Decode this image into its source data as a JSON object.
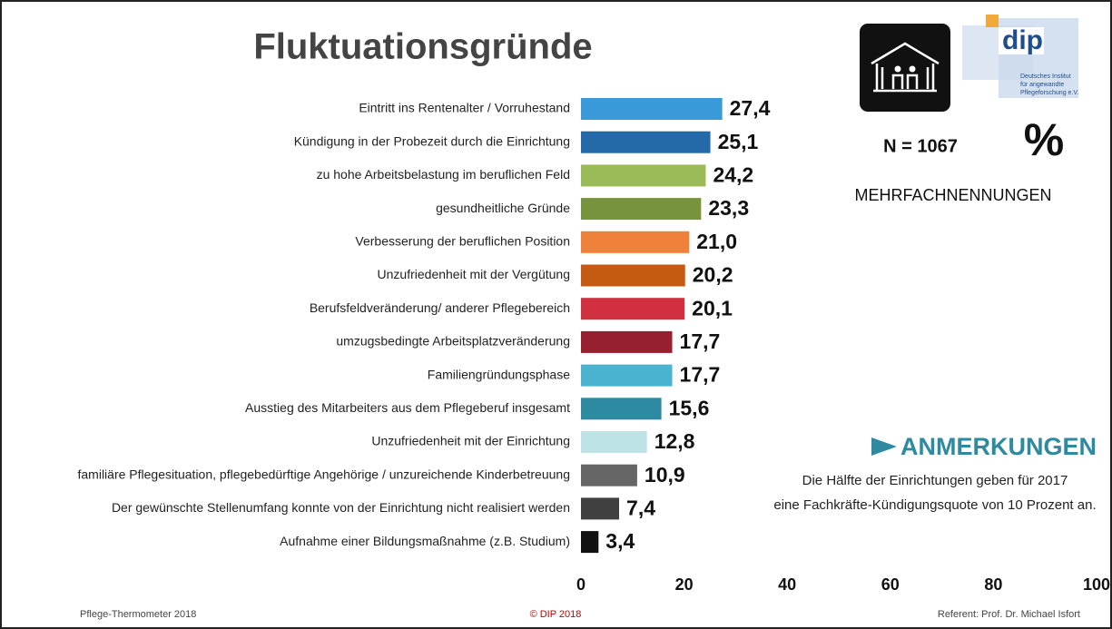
{
  "chart_data": {
    "type": "bar",
    "orientation": "horizontal",
    "title": "Fluktuationsgründe",
    "categories": [
      "Eintritt ins Rentenalter / Vorruhestand",
      "Kündigung in der Probezeit durch die Einrichtung",
      "zu hohe Arbeitsbelastung im beruflichen Feld",
      "gesundheitliche Gründe",
      "Verbesserung der beruflichen Position",
      "Unzufriedenheit mit der Vergütung",
      "Berufsfeldveränderung/ anderer Pflegebereich",
      "umzugsbedingte Arbeitsplatzveränderung",
      "Familiengründungsphase",
      "Ausstieg des Mitarbeiters aus dem Pflegeberuf insgesamt",
      "Unzufriedenheit mit der Einrichtung",
      "familiäre Pflegesituation, pflegebedürftige Angehörige / unzureichende Kinderbetreuung",
      "Der gewünschte Stellenumfang konnte von der Einrichtung nicht realisiert werden",
      "Aufnahme einer Bildungsmaßnahme (z.B. Studium)"
    ],
    "values": [
      27.4,
      25.1,
      24.2,
      23.3,
      21.0,
      20.2,
      20.1,
      17.7,
      17.7,
      15.6,
      12.8,
      10.9,
      7.4,
      3.4
    ],
    "value_labels": [
      "27,4",
      "25,1",
      "24,2",
      "23,3",
      "21,0",
      "20,2",
      "20,1",
      "17,7",
      "17,7",
      "15,6",
      "12,8",
      "10,9",
      "7,4",
      "3,4"
    ],
    "colors": [
      "#3a9ad9",
      "#2469a8",
      "#9bbb59",
      "#77933c",
      "#f0813a",
      "#c55a11",
      "#d03040",
      "#962030",
      "#4ab3cf",
      "#2e8aa0",
      "#bde3e6",
      "#666666",
      "#404040",
      "#111111"
    ],
    "xlim": [
      0,
      100
    ],
    "xticks": [
      0,
      20,
      40,
      60,
      80,
      100
    ],
    "grid": false
  },
  "sample": "N = 1067",
  "unit": "%",
  "note_label": "MEHRFACHNENNUNGEN",
  "remarks": {
    "heading": "ANMERKUNGEN",
    "lines": [
      "Die Hälfte der Einrichtungen geben für 2017",
      "eine Fachkräfte-Kündigungsquote von 10 Prozent an."
    ]
  },
  "logo": {
    "name": "dip",
    "lines": [
      "Deutsches Institut",
      "für angewandte",
      "Pflegeforschung e.V."
    ]
  },
  "footer": {
    "left": "Pflege-Thermometer 2018",
    "center": "© DIP 2018",
    "right": "Referent: Prof. Dr. Michael Isfort"
  }
}
